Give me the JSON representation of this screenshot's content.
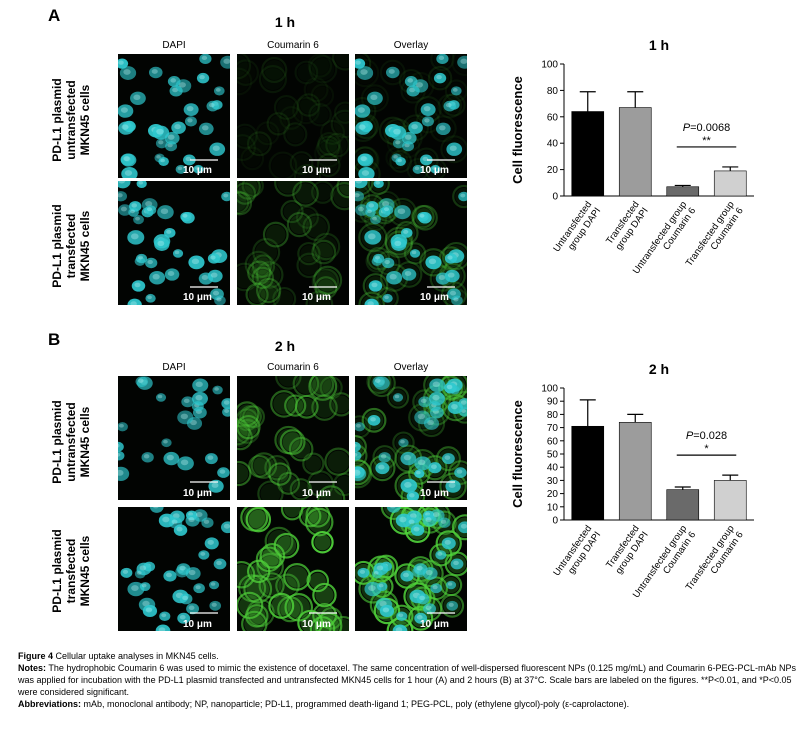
{
  "figure": {
    "panels": [
      {
        "letter": "A",
        "time": "1 h",
        "columns": [
          "DAPI",
          "Coumarin 6",
          "Overlay"
        ],
        "rows": [
          {
            "label_lines": [
              "PD-L1 plasmid",
              "untransfected",
              "MKN45 cells"
            ]
          },
          {
            "label_lines": [
              "PD-L1 plasmid",
              "transfected",
              "MKN45 cells"
            ]
          }
        ],
        "scale_bar": "10 μm"
      },
      {
        "letter": "B",
        "time": "2 h",
        "columns": [
          "DAPI",
          "Coumarin 6",
          "Overlay"
        ],
        "rows": [
          {
            "label_lines": [
              "PD-L1 plasmid",
              "untransfected",
              "MKN45 cells"
            ]
          },
          {
            "label_lines": [
              "PD-L1 plasmid",
              "transfected",
              "MKN45 cells"
            ]
          }
        ],
        "scale_bar": "10 μm"
      }
    ],
    "colors": {
      "dapi": "#2fc9cf",
      "coumarin": "#4fd23a",
      "bar1": "#000000",
      "bar2": "#9c9c9c",
      "bar3": "#6a6a6a",
      "bar4": "#d0d0d0"
    }
  },
  "chart_data": [
    {
      "type": "bar",
      "title": "1 h",
      "ylabel": "Cell fluorescence",
      "xlabel": "",
      "ylim": [
        0,
        100
      ],
      "yticks": [
        0,
        20,
        40,
        60,
        80,
        100
      ],
      "categories": [
        "Untransfected group DAPI",
        "Transfected group DAPI",
        "Untransfected group Coumarin 6",
        "Transfected group Coumarin 6"
      ],
      "category_lines": [
        [
          "Untransfected",
          "group DAPI"
        ],
        [
          "Transfected",
          "group DAPI"
        ],
        [
          "Untransfected group",
          "Coumarin 6"
        ],
        [
          "Transfected group",
          "Coumarin 6"
        ]
      ],
      "values": [
        64,
        67,
        7,
        19
      ],
      "errors": [
        15,
        12,
        1,
        3
      ],
      "annotation": {
        "p_label": "P",
        "p_value": "=0.0068",
        "stars": "**"
      }
    },
    {
      "type": "bar",
      "title": "2 h",
      "ylabel": "Cell fluorescence",
      "xlabel": "",
      "ylim": [
        0,
        100
      ],
      "yticks": [
        0,
        10,
        20,
        30,
        40,
        50,
        60,
        70,
        80,
        90,
        100
      ],
      "categories": [
        "Untransfected group DAPI",
        "Transfected group DAPI",
        "Untransfected group Coumarin 6",
        "Transfected group Coumarin 6"
      ],
      "category_lines": [
        [
          "Untransfected",
          "group DAPI"
        ],
        [
          "Transfected",
          "group DAPI"
        ],
        [
          "Untransfected group",
          "Coumarin 6"
        ],
        [
          "Transfected group",
          "Coumarin 6"
        ]
      ],
      "values": [
        71,
        74,
        23,
        30
      ],
      "errors": [
        20,
        6,
        2,
        4
      ],
      "annotation": {
        "p_label": "P",
        "p_value": "=0.028",
        "stars": "*"
      }
    }
  ],
  "caption": {
    "fig_label": "Figure 4",
    "fig_title": " Cellular uptake analyses in MKN45 cells.",
    "notes_label": "Notes:",
    "notes_text": " The hydrophobic Coumarin 6 was used to mimic the existence of docetaxel. The same concentration of well-dispersed fluorescent NPs (0.125 mg/mL) and Coumarin 6-PEG-PCL-mAb NPs was applied for incubation with the PD-L1 plasmid transfected and untransfected MKN45 cells for 1 hour (A) and 2 hours (B) at 37°C. Scale bars are labeled on the figures. **P<0.01, and *P<0.05 were considered significant.",
    "abbr_label": "Abbreviations:",
    "abbr_text": " mAb, monoclonal antibody; NP, nanoparticle; PD-L1, programmed death-ligand 1; PEG-PCL, poly (ethylene glycol)-poly (ε-caprolactone)."
  }
}
